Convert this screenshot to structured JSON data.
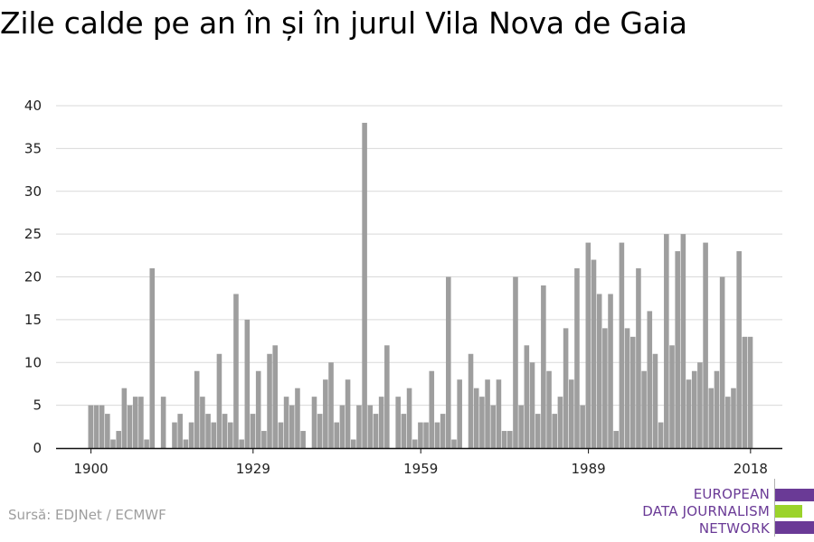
{
  "title": "Zile calde pe an în și în jurul Vila Nova de Gaia",
  "source": "Sursă: EDJNet / ECMWF",
  "logo": {
    "lines": [
      "EUROPEAN",
      "DATA JOURNALISM",
      "NETWORK"
    ],
    "colors": {
      "purple": "#6a3a96",
      "green": "#9bd32a"
    }
  },
  "chart_data": {
    "type": "bar",
    "title": "Zile calde pe an în și în jurul Vila Nova de Gaia",
    "xlabel": "",
    "ylabel": "",
    "ylim": [
      0,
      40
    ],
    "yticks": [
      0,
      5,
      10,
      15,
      20,
      25,
      30,
      35,
      40
    ],
    "xticks": [
      1900,
      1929,
      1959,
      1989,
      2018
    ],
    "grid": true,
    "bar_color": "#9e9e9e",
    "x": [
      1900,
      1901,
      1902,
      1903,
      1904,
      1905,
      1906,
      1907,
      1908,
      1909,
      1910,
      1911,
      1912,
      1913,
      1914,
      1915,
      1916,
      1917,
      1918,
      1919,
      1920,
      1921,
      1922,
      1923,
      1924,
      1925,
      1926,
      1927,
      1928,
      1929,
      1930,
      1931,
      1932,
      1933,
      1934,
      1935,
      1936,
      1937,
      1938,
      1939,
      1940,
      1941,
      1942,
      1943,
      1944,
      1945,
      1946,
      1947,
      1948,
      1949,
      1950,
      1951,
      1952,
      1953,
      1954,
      1955,
      1956,
      1957,
      1958,
      1959,
      1960,
      1961,
      1962,
      1963,
      1964,
      1965,
      1966,
      1967,
      1968,
      1969,
      1970,
      1971,
      1972,
      1973,
      1974,
      1975,
      1976,
      1977,
      1978,
      1979,
      1980,
      1981,
      1982,
      1983,
      1984,
      1985,
      1986,
      1987,
      1988,
      1989,
      1990,
      1991,
      1992,
      1993,
      1994,
      1995,
      1996,
      1997,
      1998,
      1999,
      2000,
      2001,
      2002,
      2003,
      2004,
      2005,
      2006,
      2007,
      2008,
      2009,
      2010,
      2011,
      2012,
      2013,
      2014,
      2015,
      2016,
      2017,
      2018,
      2019
    ],
    "values": [
      5,
      5,
      5,
      4,
      1,
      2,
      7,
      5,
      6,
      6,
      1,
      21,
      0,
      6,
      0,
      3,
      4,
      1,
      3,
      9,
      6,
      4,
      3,
      11,
      4,
      3,
      18,
      1,
      15,
      4,
      9,
      2,
      11,
      12,
      3,
      6,
      5,
      7,
      2,
      0,
      6,
      4,
      8,
      10,
      3,
      5,
      8,
      1,
      5,
      38,
      5,
      4,
      6,
      12,
      0,
      6,
      4,
      7,
      1,
      3,
      3,
      9,
      3,
      4,
      20,
      1,
      8,
      0,
      11,
      7,
      6,
      8,
      5,
      8,
      2,
      2,
      20,
      5,
      12,
      10,
      4,
      19,
      9,
      4,
      6,
      14,
      8,
      21,
      5,
      24,
      22,
      18,
      14,
      18,
      2,
      24,
      14,
      13,
      21,
      9,
      16,
      11,
      3,
      25,
      12,
      23,
      25,
      8,
      9,
      10,
      24,
      7,
      9,
      20,
      6,
      7,
      23,
      13,
      13,
      0
    ]
  }
}
